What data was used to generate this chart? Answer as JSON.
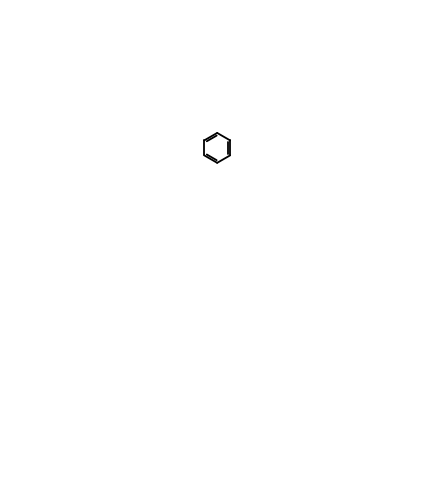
{
  "background_color": "#ffffff",
  "line_color": "#000000",
  "line_width": 1.5,
  "figure_width": 4.42,
  "figure_height": 4.84,
  "dpi": 100
}
